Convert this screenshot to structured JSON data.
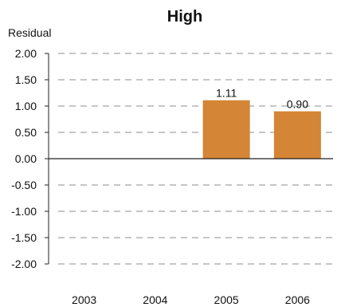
{
  "chart_data": {
    "type": "bar",
    "title": "High",
    "ylabel": "Residual",
    "xlabel": "",
    "categories": [
      "2003",
      "2004",
      "2005",
      "2006"
    ],
    "values": [
      null,
      null,
      1.11,
      0.9
    ],
    "data_labels": [
      "",
      "",
      "1.11",
      "0.90"
    ],
    "ylim": [
      -2.0,
      2.0
    ],
    "yticks": [
      2.0,
      1.5,
      1.0,
      0.5,
      0.0,
      -0.5,
      -1.0,
      -1.5,
      -2.0
    ],
    "ytick_labels": [
      "2.00",
      "1.50",
      "1.00",
      "0.50",
      "0.00",
      "-0.50",
      "-1.00",
      "-1.50",
      "-2.00"
    ],
    "grid": true,
    "bar_color": "#d48535",
    "grid_color": "#8c8c8c",
    "axis_color": "#222222"
  }
}
